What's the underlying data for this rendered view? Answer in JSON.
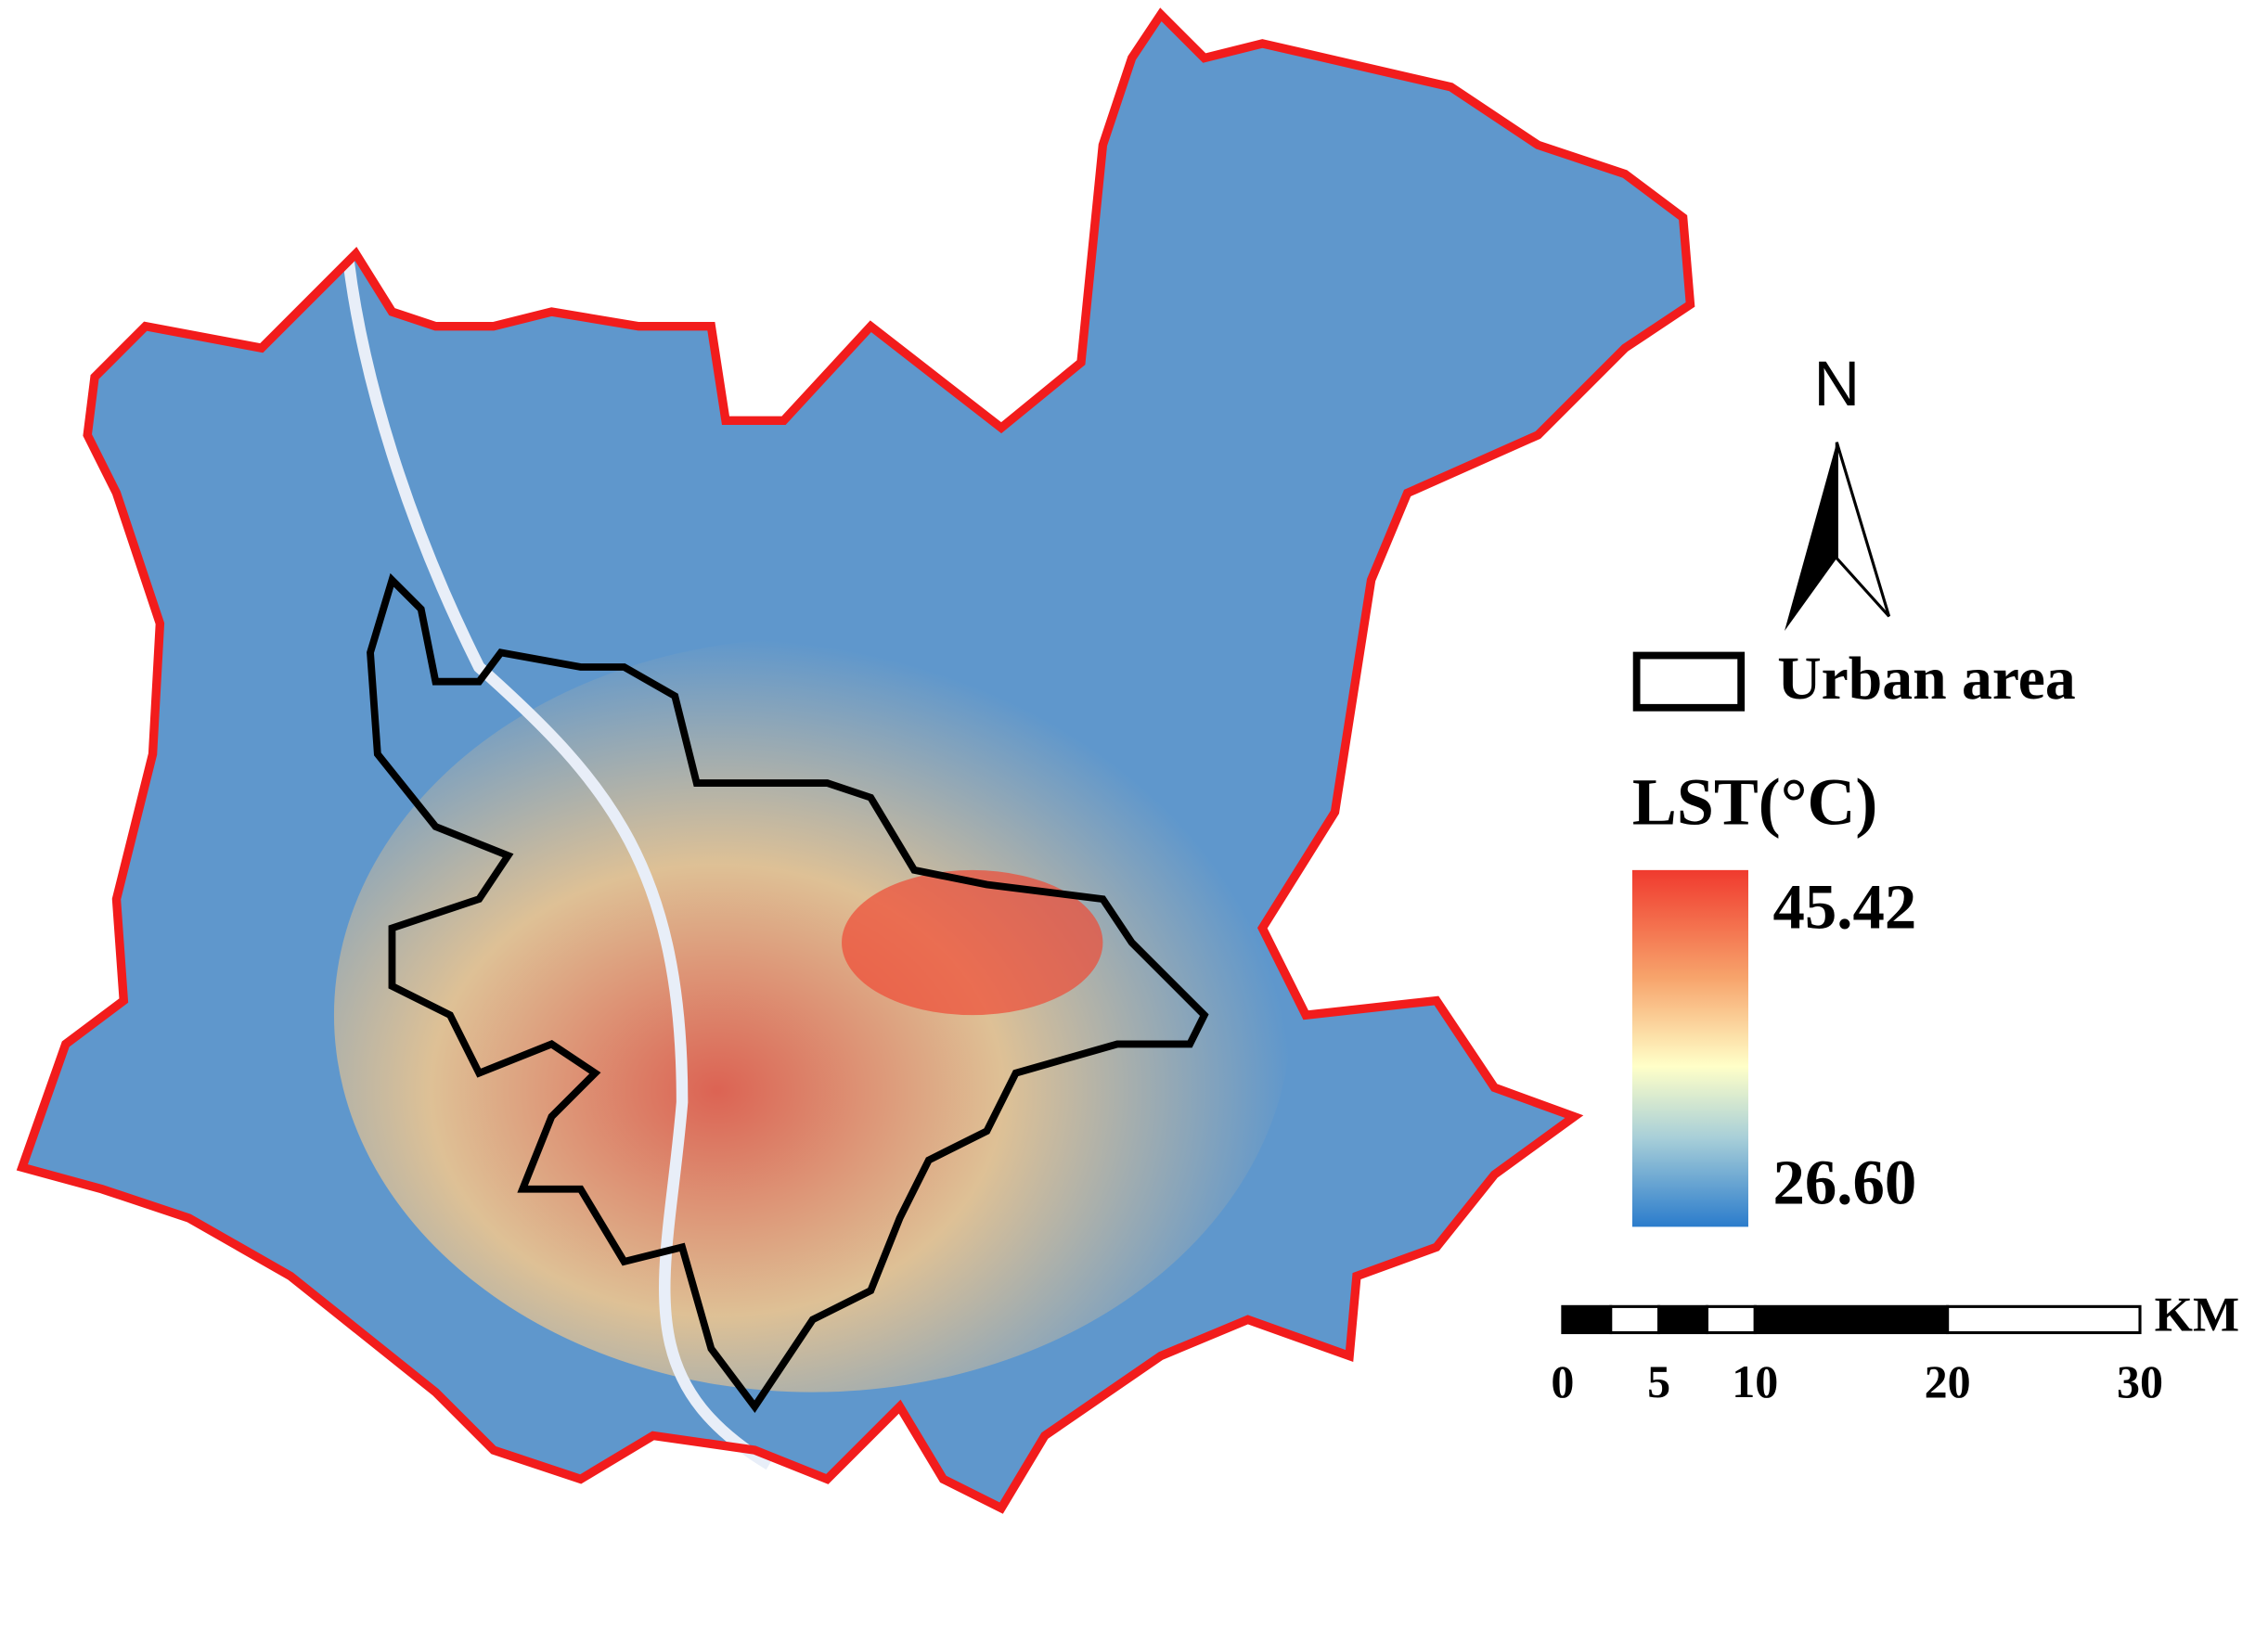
{
  "north_arrow": {
    "label": "N"
  },
  "legend": {
    "urban_label": "Urban area",
    "lst_title": "LST(°C)",
    "max_label": "45.42",
    "min_label": "26.60"
  },
  "scale_bar": {
    "unit": "KM",
    "ticks": [
      0,
      5,
      10,
      20,
      30
    ]
  }
}
